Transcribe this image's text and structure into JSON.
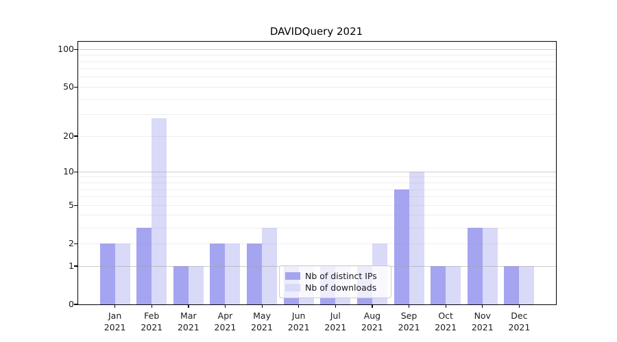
{
  "title": "DAVIDQuery 2021",
  "chart_data": {
    "type": "bar",
    "scale": "log1p",
    "title": "DAVIDQuery 2021",
    "xlabel": "",
    "ylabel": "",
    "categories": [
      "Jan 2021",
      "Feb 2021",
      "Mar 2021",
      "Apr 2021",
      "May 2021",
      "Jun 2021",
      "Jul 2021",
      "Aug 2021",
      "Sep 2021",
      "Oct 2021",
      "Nov 2021",
      "Dec 2021"
    ],
    "series": [
      {
        "name": "Nb of distinct IPs",
        "color": "#a4a4f1",
        "values": [
          2,
          3,
          1,
          2,
          2,
          1,
          1,
          1,
          7,
          1,
          3,
          1
        ]
      },
      {
        "name": "Nb of downloads",
        "color": "#d9d9f8",
        "values": [
          2,
          28,
          1,
          2,
          3,
          1,
          1,
          2,
          10,
          1,
          3,
          1
        ]
      }
    ],
    "yticks_labeled": [
      0,
      1,
      2,
      5,
      10,
      20,
      50,
      100
    ],
    "gridlines_major": [
      1,
      10,
      100
    ],
    "gridlines_minor": [
      2,
      3,
      4,
      5,
      6,
      7,
      8,
      9,
      20,
      30,
      40,
      50,
      60,
      70,
      80,
      90
    ],
    "ylim": [
      0,
      115
    ],
    "grid": true,
    "legend_position": "lower center-left inside plot"
  },
  "colors": {
    "series_dark": "#a4a4f1",
    "series_light": "#d9d9f8",
    "axis": "#000000",
    "grid_major": "#a0a0a0",
    "grid_minor": "#dcdcdc",
    "legend_border": "#cccccc"
  }
}
